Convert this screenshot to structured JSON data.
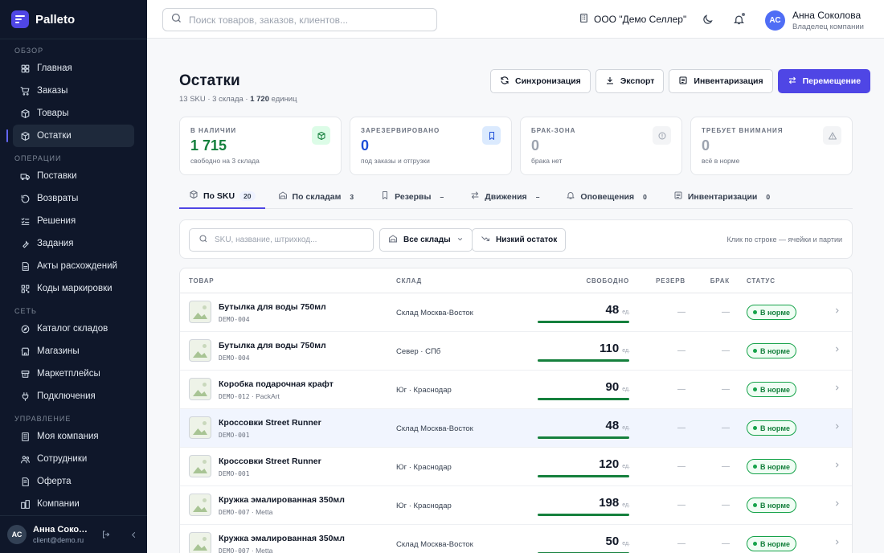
{
  "brand": {
    "name": "Palleto"
  },
  "sidebar": {
    "sections": [
      {
        "title": "ОБЗОР",
        "items": [
          {
            "label": "Главная",
            "icon": "grid-icon"
          },
          {
            "label": "Заказы",
            "icon": "cart-icon"
          },
          {
            "label": "Товары",
            "icon": "box-icon"
          },
          {
            "label": "Остатки",
            "icon": "stock-icon",
            "active": true
          }
        ]
      },
      {
        "title": "ОПЕРАЦИИ",
        "items": [
          {
            "label": "Поставки",
            "icon": "truck-icon"
          },
          {
            "label": "Возвраты",
            "icon": "return-icon"
          },
          {
            "label": "Решения",
            "icon": "checklist-icon"
          },
          {
            "label": "Задания",
            "icon": "wrench-icon"
          },
          {
            "label": "Акты расхождений",
            "icon": "document-icon"
          },
          {
            "label": "Коды маркировки",
            "icon": "qr-icon"
          }
        ]
      },
      {
        "title": "СЕТЬ",
        "items": [
          {
            "label": "Каталог складов",
            "icon": "compass-icon"
          },
          {
            "label": "Магазины",
            "icon": "store-icon"
          },
          {
            "label": "Маркетплейсы",
            "icon": "marketplace-icon"
          },
          {
            "label": "Подключения",
            "icon": "plug-icon"
          }
        ]
      },
      {
        "title": "УПРАВЛЕНИЕ",
        "items": [
          {
            "label": "Моя компания",
            "icon": "building-icon"
          },
          {
            "label": "Сотрудники",
            "icon": "users-icon"
          },
          {
            "label": "Оферта",
            "icon": "contract-icon"
          },
          {
            "label": "Компании",
            "icon": "companies-icon"
          }
        ]
      }
    ],
    "footer": {
      "initials": "АС",
      "name": "Анна Соколова",
      "email": "client@demo.ru"
    }
  },
  "topbar": {
    "search_placeholder": "Поиск товаров, заказов, клиентов...",
    "org": "ООО \"Демо Селлер\"",
    "user": {
      "initials": "АС",
      "name": "Анна Соколова",
      "role": "Владелец компании"
    }
  },
  "page": {
    "title": "Остатки",
    "sub_a": "13 SKU · 3 склада · ",
    "sub_b": "1 720",
    "sub_c": " единиц"
  },
  "actions": {
    "sync": "Синхронизация",
    "export": "Экспорт",
    "inventory": "Инвентаризация",
    "move": "Перемещение"
  },
  "stats": [
    {
      "label": "В НАЛИЧИИ",
      "value": "1 715",
      "note": "свободно на 3 склада",
      "tone": "green",
      "icon": "cube-icon"
    },
    {
      "label": "ЗАРЕЗЕРВИРОВАНО",
      "value": "0",
      "note": "под заказы и отгрузки",
      "tone": "blue",
      "icon": "bookmark-icon"
    },
    {
      "label": "БРАК-ЗОНА",
      "value": "0",
      "note": "брака нет",
      "tone": "gray",
      "icon": "alert-circle-icon"
    },
    {
      "label": "ТРЕБУЕТ ВНИМАНИЯ",
      "value": "0",
      "note": "всё в норме",
      "tone": "gray",
      "icon": "warning-icon"
    }
  ],
  "tabs": [
    {
      "label": "По SKU",
      "count": "20",
      "icon": "cube-icon",
      "active": true
    },
    {
      "label": "По складам",
      "count": "3",
      "icon": "warehouse-icon"
    },
    {
      "label": "Резервы",
      "count": "–",
      "icon": "bookmark-icon"
    },
    {
      "label": "Движения",
      "count": "–",
      "icon": "arrows-icon"
    },
    {
      "label": "Оповещения",
      "count": "0",
      "icon": "bell-icon"
    },
    {
      "label": "Инвентаризации",
      "count": "0",
      "icon": "clipboard-icon"
    }
  ],
  "filters": {
    "search_placeholder": "SKU, название, штрихкод...",
    "warehouse": "Все склады",
    "low_stock": "Низкий остаток",
    "hint": "Клик по строке — ячейки и партии"
  },
  "table": {
    "headers": {
      "product": "ТОВАР",
      "warehouse": "СКЛАД",
      "free": "СВОБОДНО",
      "reserve": "РЕЗЕРВ",
      "defect": "БРАК",
      "status": "СТАТУС"
    },
    "unit": "ед.",
    "rows": [
      {
        "name": "Бутылка для воды 750мл",
        "sku": "DEMO-004",
        "brand": "",
        "warehouse": "Склад Москва-Восток",
        "free": "48",
        "fill": 1.0,
        "reserve": "—",
        "defect": "—",
        "status": "В норме"
      },
      {
        "name": "Бутылка для воды 750мл",
        "sku": "DEMO-004",
        "brand": "",
        "warehouse": "Север · СПб",
        "free": "110",
        "fill": 1.0,
        "reserve": "—",
        "defect": "—",
        "status": "В норме"
      },
      {
        "name": "Коробка подарочная крафт",
        "sku": "DEMO-012",
        "brand": "PackArt",
        "warehouse": "Юг · Краснодар",
        "free": "90",
        "fill": 1.0,
        "reserve": "—",
        "defect": "—",
        "status": "В норме"
      },
      {
        "name": "Кроссовки Street Runner",
        "sku": "DEMO-001",
        "brand": "",
        "warehouse": "Склад Москва-Восток",
        "free": "48",
        "fill": 1.0,
        "reserve": "—",
        "defect": "—",
        "status": "В норме",
        "highlight": true
      },
      {
        "name": "Кроссовки Street Runner",
        "sku": "DEMO-001",
        "brand": "",
        "warehouse": "Юг · Краснодар",
        "free": "120",
        "fill": 1.0,
        "reserve": "—",
        "defect": "—",
        "status": "В норме"
      },
      {
        "name": "Кружка эмалированная 350мл",
        "sku": "DEMO-007",
        "brand": "Metta",
        "warehouse": "Юг · Краснодар",
        "free": "198",
        "fill": 1.0,
        "reserve": "—",
        "defect": "—",
        "status": "В норме"
      },
      {
        "name": "Кружка эмалированная 350мл",
        "sku": "DEMO-007",
        "brand": "Metta",
        "warehouse": "Склад Москва-Восток",
        "free": "50",
        "fill": 1.0,
        "reserve": "—",
        "defect": "—",
        "status": "В норме"
      }
    ]
  }
}
